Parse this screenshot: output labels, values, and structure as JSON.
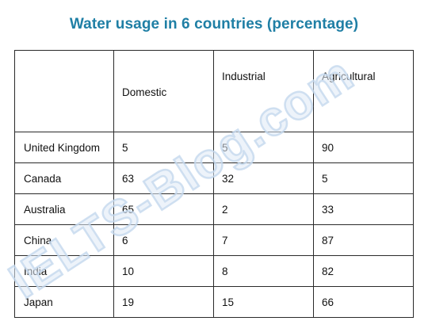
{
  "title": "Water usage in 6 countries (percentage)",
  "watermark": "IELTS-Blog.com",
  "chart_data": {
    "type": "table",
    "title": "Water usage in 6 countries (percentage)",
    "columns": [
      "",
      "Domestic",
      "Industrial",
      "Agricultural"
    ],
    "rows": [
      {
        "country": "United Kingdom",
        "values": [
          5,
          5,
          90
        ]
      },
      {
        "country": "Canada",
        "values": [
          63,
          32,
          5
        ]
      },
      {
        "country": "Australia",
        "values": [
          65,
          2,
          33
        ]
      },
      {
        "country": "China",
        "values": [
          6,
          7,
          87
        ]
      },
      {
        "country": "India",
        "values": [
          10,
          8,
          82
        ]
      },
      {
        "country": "Japan",
        "values": [
          19,
          15,
          66
        ]
      }
    ]
  }
}
